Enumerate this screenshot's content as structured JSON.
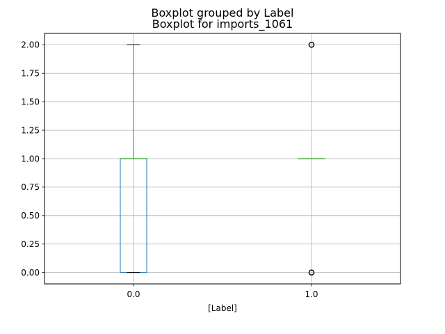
{
  "chart_data": {
    "type": "box",
    "suptitle": "Boxplot grouped by Label",
    "title": "Boxplot for imports_1061",
    "xlabel": "[Label]",
    "ylabel": "",
    "categories": [
      "0.0",
      "1.0"
    ],
    "boxes": [
      {
        "category": "0.0",
        "whisker_low": 0.0,
        "q1": 0.0,
        "median": 1.0,
        "q3": 1.0,
        "whisker_high": 2.0,
        "outliers": []
      },
      {
        "category": "1.0",
        "whisker_low": 1.0,
        "q1": 1.0,
        "median": 1.0,
        "q3": 1.0,
        "whisker_high": 1.0,
        "outliers": [
          0.0,
          2.0
        ]
      }
    ],
    "ylim": [
      -0.1,
      2.1
    ],
    "yticks": [
      0.0,
      0.25,
      0.5,
      0.75,
      1.0,
      1.25,
      1.5,
      1.75,
      2.0
    ],
    "ytick_labels": [
      "0.00",
      "0.25",
      "0.50",
      "0.75",
      "1.00",
      "1.25",
      "1.50",
      "1.75",
      "2.00"
    ],
    "grid": true,
    "colors": {
      "box": "#1f77b4",
      "median": "#2ca02c",
      "whisker": "#1f77b4",
      "cap": "#000000",
      "outlier": "#000000",
      "grid": "#b0b0b0"
    }
  }
}
